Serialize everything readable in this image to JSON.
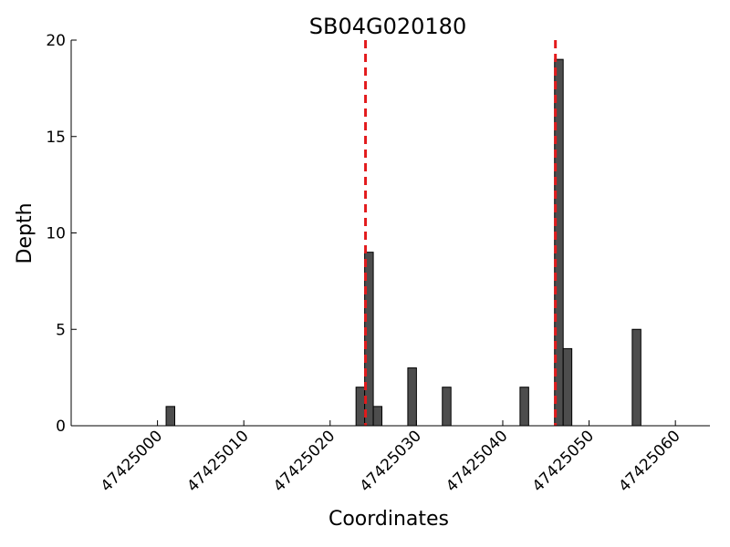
{
  "chart_data": {
    "type": "bar",
    "title": "SB04G020180",
    "xlabel": "Coordinates",
    "ylabel": "Depth",
    "xlim": [
      47424990,
      47425064
    ],
    "ylim": [
      0,
      20
    ],
    "xticks": [
      47425000,
      47425010,
      47425020,
      47425030,
      47425040,
      47425050,
      47425060
    ],
    "yticks": [
      0,
      5,
      10,
      15,
      20
    ],
    "grid": false,
    "bar_width": 1,
    "bar_color": "#4d4d4d",
    "bars": [
      {
        "x": 47425001,
        "value": 1
      },
      {
        "x": 47425023,
        "value": 2
      },
      {
        "x": 47425024,
        "value": 9
      },
      {
        "x": 47425025,
        "value": 1
      },
      {
        "x": 47425029,
        "value": 3
      },
      {
        "x": 47425033,
        "value": 2
      },
      {
        "x": 47425042,
        "value": 2
      },
      {
        "x": 47425046,
        "value": 19
      },
      {
        "x": 47425047,
        "value": 4
      },
      {
        "x": 47425055,
        "value": 5
      }
    ],
    "vlines": {
      "color": "#e31a1c",
      "style": "dashed",
      "x": [
        47425024.1,
        47425046.1
      ]
    }
  }
}
